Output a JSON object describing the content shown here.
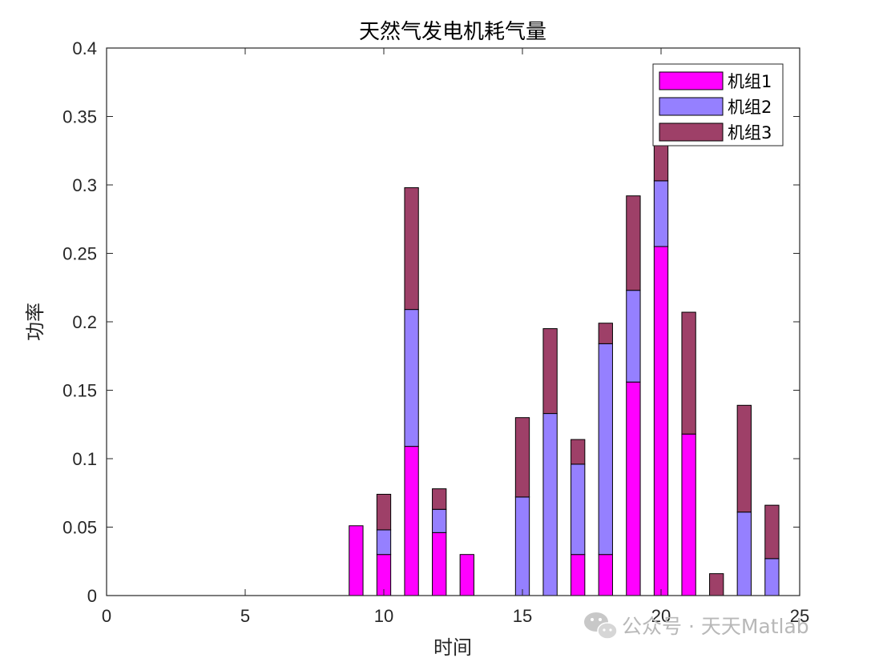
{
  "chart_data": {
    "type": "bar",
    "stacked": true,
    "title": "天然气发电机耗气量",
    "xlabel": "时间",
    "ylabel": "功率",
    "xlim": [
      0,
      25
    ],
    "ylim": [
      0,
      0.4
    ],
    "xticks": [
      "0",
      "5",
      "10",
      "15",
      "20",
      "25"
    ],
    "yticks": [
      "0",
      "0.05",
      "0.1",
      "0.15",
      "0.2",
      "0.25",
      "0.3",
      "0.35",
      "0.4"
    ],
    "grid": false,
    "legend_position": "top-right",
    "x": [
      1,
      2,
      3,
      4,
      5,
      6,
      7,
      8,
      9,
      10,
      11,
      12,
      13,
      14,
      15,
      16,
      17,
      18,
      19,
      20,
      21,
      22,
      23,
      24
    ],
    "series": [
      {
        "name": "机组1",
        "color": "#FF00FF",
        "values": [
          0,
          0,
          0,
          0,
          0,
          0,
          0,
          0,
          0.051,
          0.03,
          0.109,
          0.046,
          0.03,
          0,
          0,
          0,
          0.03,
          0.03,
          0.156,
          0.255,
          0.118,
          0,
          0,
          0
        ]
      },
      {
        "name": "机组2",
        "color": "#9580FF",
        "values": [
          0,
          0,
          0,
          0,
          0,
          0,
          0,
          0,
          0,
          0.018,
          0.1,
          0.017,
          0,
          0,
          0.072,
          0.133,
          0.066,
          0.154,
          0.067,
          0.048,
          0,
          0,
          0.061,
          0.027
        ]
      },
      {
        "name": "机组3",
        "color": "#9E4068",
        "values": [
          0,
          0,
          0,
          0,
          0,
          0,
          0,
          0,
          0,
          0.026,
          0.089,
          0.015,
          0,
          0,
          0.058,
          0.062,
          0.018,
          0.015,
          0.069,
          0.058,
          0.089,
          0.016,
          0.078,
          0.039
        ]
      }
    ]
  },
  "watermark": {
    "text": "公众号 · 天天Matlab",
    "icon": "wechat-icon"
  }
}
